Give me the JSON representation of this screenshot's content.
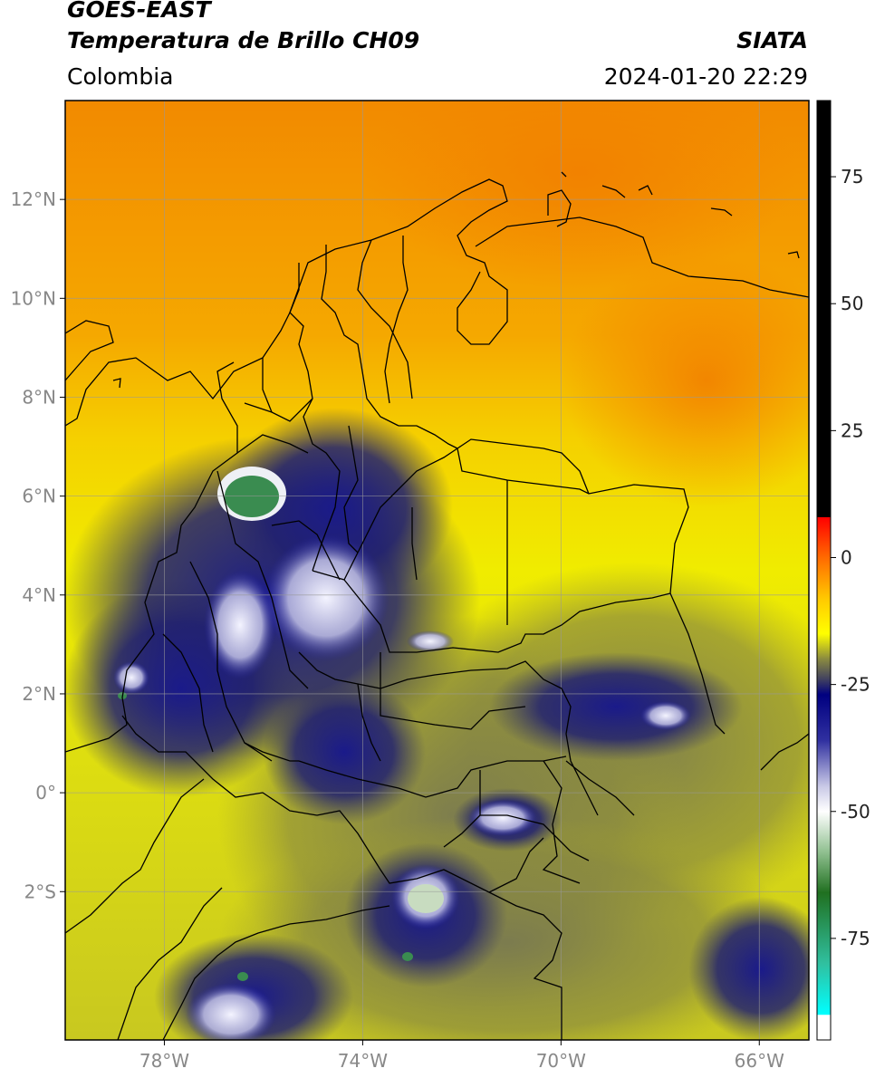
{
  "header": {
    "satellite": "GOES-EAST",
    "product": "Temperatura de Brillo CH09",
    "organization": "SIATA",
    "region": "Colombia",
    "timestamp": "2024-01-20 22:29"
  },
  "map": {
    "lon_range": [
      -80,
      -65
    ],
    "lat_range": [
      -5,
      14
    ],
    "lon_ticks": [
      {
        "value": -78,
        "label": "78°W"
      },
      {
        "value": -74,
        "label": "74°W"
      },
      {
        "value": -70,
        "label": "70°W"
      },
      {
        "value": -66,
        "label": "66°W"
      }
    ],
    "lat_ticks": [
      {
        "value": 12,
        "label": "12°N"
      },
      {
        "value": 10,
        "label": "10°N"
      },
      {
        "value": 8,
        "label": "8°N"
      },
      {
        "value": 6,
        "label": "6°N"
      },
      {
        "value": 4,
        "label": "4°N"
      },
      {
        "value": 2,
        "label": "2°N"
      },
      {
        "value": 0,
        "label": "0°"
      },
      {
        "value": -2,
        "label": "2°S"
      }
    ],
    "gridlines": true,
    "colors": {
      "warm": "#f28c00",
      "mid": "#f5c800",
      "yellow": "#f0f000",
      "olive": "#8a8a50",
      "navy": "#101478",
      "cold_white": "#eef0f5",
      "green": "#3a8c50"
    }
  },
  "colorbar": {
    "range": [
      -95,
      90
    ],
    "ticks": [
      {
        "value": 75,
        "label": "75"
      },
      {
        "value": 50,
        "label": "50"
      },
      {
        "value": 25,
        "label": "25"
      },
      {
        "value": 0,
        "label": "0"
      },
      {
        "value": -25,
        "label": "-25"
      },
      {
        "value": -50,
        "label": "-50"
      },
      {
        "value": -75,
        "label": "-75"
      }
    ],
    "stops": [
      {
        "value": 90,
        "color": "#000000"
      },
      {
        "value": 8,
        "color": "#000000"
      },
      {
        "value": 7.9,
        "color": "#ff0000"
      },
      {
        "value": 0,
        "color": "#ff6a00"
      },
      {
        "value": -8,
        "color": "#ffc800"
      },
      {
        "value": -15,
        "color": "#ffff00"
      },
      {
        "value": -20,
        "color": "#8a8a40"
      },
      {
        "value": -24,
        "color": "#404060"
      },
      {
        "value": -27,
        "color": "#000080"
      },
      {
        "value": -36,
        "color": "#3030a0"
      },
      {
        "value": -45,
        "color": "#c8c8e6"
      },
      {
        "value": -50,
        "color": "#ffffff"
      },
      {
        "value": -58,
        "color": "#90c090"
      },
      {
        "value": -66,
        "color": "#207020"
      },
      {
        "value": -80,
        "color": "#30c0a0"
      },
      {
        "value": -90,
        "color": "#00ffff"
      },
      {
        "value": -90.1,
        "color": "#ffffff"
      },
      {
        "value": -95,
        "color": "#ffffff"
      }
    ]
  }
}
